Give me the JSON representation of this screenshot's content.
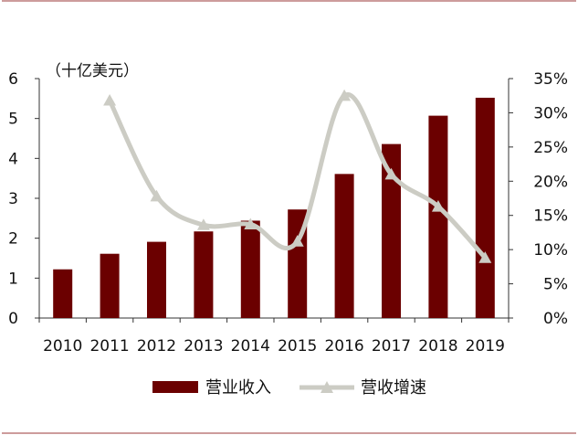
{
  "chart_data": {
    "type": "bar",
    "y_unit_label": "（十亿美元）",
    "categories": [
      "2010",
      "2011",
      "2012",
      "2013",
      "2014",
      "2015",
      "2016",
      "2017",
      "2018",
      "2019"
    ],
    "series": [
      {
        "name": "营业收入",
        "type": "bar",
        "axis": "left",
        "color": "#6b0000",
        "values": [
          1.22,
          1.61,
          1.91,
          2.17,
          2.44,
          2.72,
          3.61,
          4.36,
          5.07,
          5.52
        ]
      },
      {
        "name": "营收增速",
        "type": "line",
        "axis": "right",
        "color": "#ccccc4",
        "values": [
          null,
          0.318,
          0.178,
          0.136,
          0.137,
          0.112,
          0.325,
          0.21,
          0.163,
          0.088
        ]
      }
    ],
    "y_left": {
      "min": 0,
      "max": 6,
      "ticks": [
        "0",
        "1",
        "2",
        "3",
        "4",
        "5",
        "6"
      ]
    },
    "y_right": {
      "min": 0,
      "max": 0.35,
      "ticks": [
        "0%",
        "5%",
        "10%",
        "15%",
        "20%",
        "25%",
        "30%",
        "35%"
      ]
    },
    "grid": false,
    "legend_position": "bottom"
  }
}
